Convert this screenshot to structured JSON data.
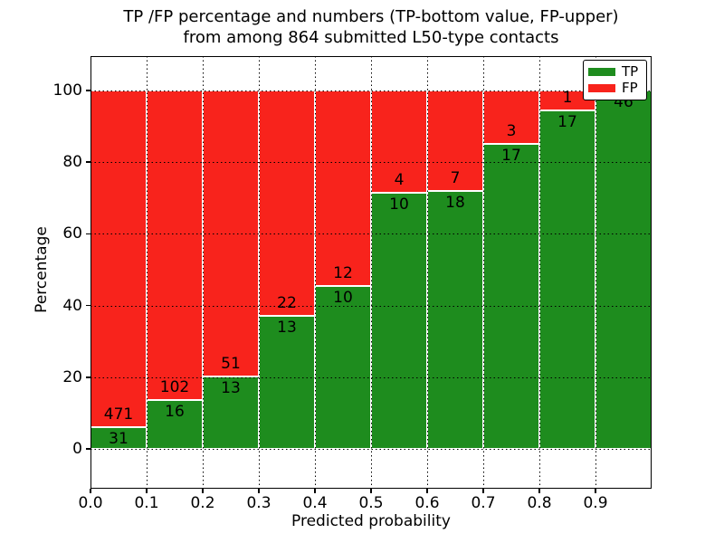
{
  "figure": {
    "title_line1": "TP /FP percentage and numbers (TP-bottom value, FP-upper)",
    "title_line2": "from among 864 submitted L50-type contacts",
    "xlabel": "Predicted probability",
    "ylabel": "Percentage"
  },
  "legend": {
    "position": "upper right",
    "items": [
      {
        "label": "TP",
        "color": "#1e8c1e"
      },
      {
        "label": "FP",
        "color": "#f8231c"
      }
    ]
  },
  "chart_data": {
    "type": "bar",
    "stacked": true,
    "normalized_to_percent": true,
    "title": "TP /FP percentage and numbers (TP-bottom value, FP-upper) from among 864 submitted L50-type contacts",
    "xlabel": "Predicted probability",
    "ylabel": "Percentage",
    "total_contacts": 864,
    "bin_edges": [
      0.0,
      0.1,
      0.2,
      0.3,
      0.4,
      0.5,
      0.6,
      0.7,
      0.8,
      0.9,
      1.0
    ],
    "x_tick_labels": [
      "0.0",
      "0.1",
      "0.2",
      "0.3",
      "0.4",
      "0.5",
      "0.6",
      "0.7",
      "0.8",
      "0.9"
    ],
    "y_tick_labels": [
      0,
      20,
      40,
      60,
      80,
      100
    ],
    "ylim": [
      0,
      100
    ],
    "grid": "dotted black, vertical at each 0.1 and horizontal at each 20",
    "legend_position": "upper right",
    "series": [
      {
        "name": "TP",
        "color": "#1e8c1e",
        "counts": [
          31,
          16,
          13,
          13,
          10,
          10,
          18,
          17,
          17,
          46
        ]
      },
      {
        "name": "FP",
        "color": "#f8231c",
        "counts": [
          471,
          102,
          51,
          22,
          12,
          4,
          7,
          3,
          1,
          0
        ]
      }
    ],
    "tp_percent_per_bin": [
      6.2,
      13.6,
      20.3,
      37.1,
      45.5,
      71.4,
      72.0,
      85.0,
      94.4,
      100.0
    ]
  }
}
